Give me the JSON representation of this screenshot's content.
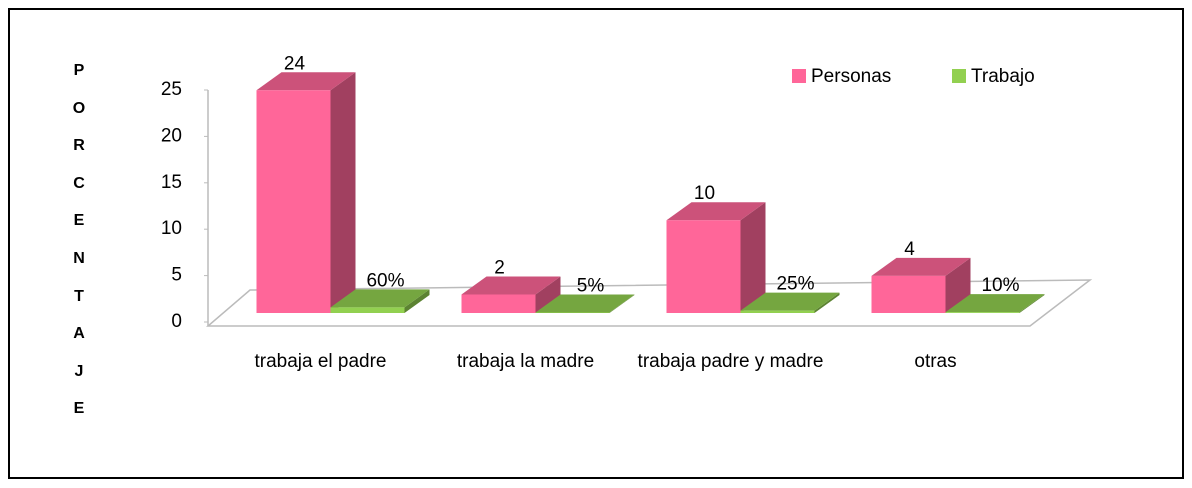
{
  "chart_data": {
    "type": "bar3d",
    "y_label": "PORCENTAJE",
    "categories": [
      "trabaja el padre",
      "trabaja la madre",
      "trabaja padre y madre",
      "otras"
    ],
    "series": [
      {
        "name": "Personas",
        "color": "#ff6699",
        "values": [
          24,
          2,
          10,
          4
        ]
      },
      {
        "name": "Trabajo",
        "color": "#92d050",
        "values": [
          0.6,
          0.05,
          0.25,
          0.1
        ],
        "value_labels": [
          "60%",
          "5%",
          "25%",
          "10%"
        ]
      }
    ],
    "ylim": [
      0,
      25
    ],
    "yticks": [
      0,
      5,
      10,
      15,
      20,
      25
    ],
    "legend": "top-right"
  }
}
